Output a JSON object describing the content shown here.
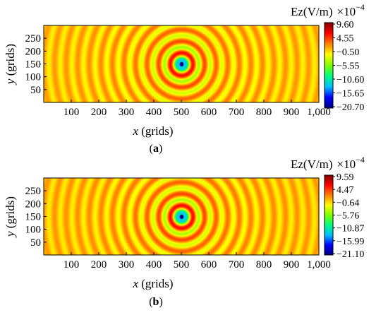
{
  "chart_data": [
    {
      "type": "heatmap",
      "panel_label": "(a)",
      "xlabel": "x (grids)",
      "ylabel": "y (grids)",
      "x_ticks": [
        "100",
        "200",
        "300",
        "400",
        "500",
        "600",
        "700",
        "800",
        "900",
        "1,000"
      ],
      "y_ticks": [
        "50",
        "100",
        "150",
        "200",
        "250"
      ],
      "xlim": [
        0,
        1000
      ],
      "ylim": [
        0,
        300
      ],
      "colorbar": {
        "title": "Ez(V/m)",
        "multiplier": "×10",
        "exponent": "−4",
        "ticks": [
          "9.60",
          "4.55",
          "−0.50",
          "−5.55",
          "−10.60",
          "−15.65",
          "−20.70"
        ],
        "range": [
          -20.7,
          9.6
        ],
        "colormap": [
          "#00007f",
          "#0000ff",
          "#00bfff",
          "#00ff80",
          "#80ff00",
          "#ffff00",
          "#ff8000",
          "#ff0000",
          "#800000"
        ]
      },
      "source": {
        "x": 500,
        "y": 150
      },
      "field": {
        "amplitude_center": -20.7,
        "ring_wavelength": 42
      }
    },
    {
      "type": "heatmap",
      "panel_label": "(b)",
      "xlabel": "x (grids)",
      "ylabel": "y (grids)",
      "x_ticks": [
        "100",
        "200",
        "300",
        "400",
        "500",
        "600",
        "700",
        "800",
        "900",
        "1,000"
      ],
      "y_ticks": [
        "50",
        "100",
        "150",
        "200",
        "250"
      ],
      "xlim": [
        0,
        1000
      ],
      "ylim": [
        0,
        300
      ],
      "colorbar": {
        "title": "Ez(V/m)",
        "multiplier": "×10",
        "exponent": "−4",
        "ticks": [
          "9.59",
          "4.47",
          "−0.64",
          "−5.76",
          "−10.87",
          "−15.99",
          "−21.10"
        ],
        "range": [
          -21.1,
          9.59
        ],
        "colormap": [
          "#00007f",
          "#0000ff",
          "#00bfff",
          "#00ff80",
          "#80ff00",
          "#ffff00",
          "#ff8000",
          "#ff0000",
          "#800000"
        ]
      },
      "source": {
        "x": 500,
        "y": 150
      },
      "field": {
        "amplitude_center": -21.1,
        "ring_wavelength": 42
      }
    }
  ]
}
